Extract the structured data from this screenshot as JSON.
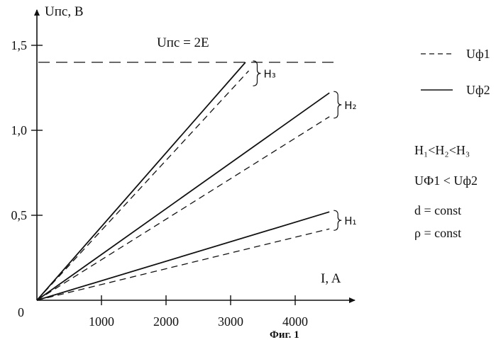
{
  "chart_data": {
    "type": "line",
    "title": "",
    "caption": "Фиг. 1",
    "xlabel": "I, A",
    "ylabel": "Uпс, В",
    "origin_label": "0",
    "xlim": [
      0,
      4700
    ],
    "ylim": [
      0,
      1.6
    ],
    "x_ticks": [
      1000,
      2000,
      3000,
      4000
    ],
    "x_tick_labels": [
      "1000",
      "2000",
      "3000",
      "4000"
    ],
    "y_ticks": [
      0.5,
      1.0,
      1.5
    ],
    "y_tick_labels": [
      "0,5",
      "1,0",
      "1,5"
    ],
    "grid": false,
    "legend_position": "right",
    "legend": [
      {
        "label": "Uф1",
        "style": "dashed"
      },
      {
        "label": "Uф2",
        "style": "solid"
      }
    ],
    "series": [
      {
        "group": "H1",
        "style": "dashed",
        "x": [
          0,
          4530
        ],
        "y": [
          0,
          0.42
        ]
      },
      {
        "group": "H1",
        "style": "solid",
        "x": [
          0,
          4530
        ],
        "y": [
          0,
          0.52
        ]
      },
      {
        "group": "H2",
        "style": "dashed",
        "x": [
          0,
          4530
        ],
        "y": [
          0,
          1.08
        ]
      },
      {
        "group": "H2",
        "style": "solid",
        "x": [
          0,
          4530
        ],
        "y": [
          0,
          1.22
        ]
      },
      {
        "group": "H3",
        "style": "dashed",
        "x": [
          0,
          3280
        ],
        "y": [
          0,
          1.35
        ]
      },
      {
        "group": "H3",
        "style": "solid",
        "x": [
          0,
          3230
        ],
        "y": [
          0,
          1.4
        ]
      }
    ],
    "limit_line": {
      "y": 1.4,
      "label": "Uпс = 2E",
      "style": "dashed"
    },
    "group_labels": [
      {
        "name": "H1",
        "label": "Н₁",
        "y_range": [
          0.42,
          0.52
        ]
      },
      {
        "name": "H2",
        "label": "Н₂",
        "y_range": [
          1.08,
          1.22
        ]
      },
      {
        "name": "H3",
        "label": "Н₃",
        "y_range": [
          1.27,
          1.4
        ]
      }
    ],
    "annotations": [
      "H₁<H₂<H₃",
      "UФ1 <  Uф2",
      "d = const",
      "ρ = const"
    ]
  }
}
